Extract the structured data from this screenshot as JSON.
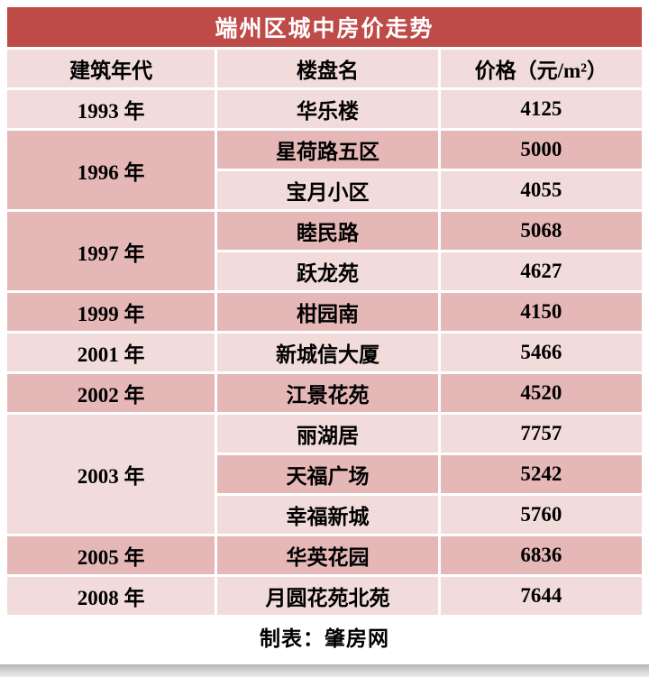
{
  "chart_data": {
    "type": "table",
    "title": "端州区城中房价走势",
    "columns": [
      "建筑年代",
      "楼盘名",
      "价格（元/m²）"
    ],
    "groups": [
      {
        "year": "1993 年",
        "entries": [
          {
            "name": "华乐楼",
            "price": 4125
          }
        ]
      },
      {
        "year": "1996 年",
        "entries": [
          {
            "name": "星荷路五区",
            "price": 5000
          },
          {
            "name": "宝月小区",
            "price": 4055
          }
        ]
      },
      {
        "year": "1997 年",
        "entries": [
          {
            "name": "睦民路",
            "price": 5068
          },
          {
            "name": "跃龙苑",
            "price": 4627
          }
        ]
      },
      {
        "year": "1999 年",
        "entries": [
          {
            "name": "柑园南",
            "price": 4150
          }
        ]
      },
      {
        "year": "2001 年",
        "entries": [
          {
            "name": "新城信大厦",
            "price": 5466
          }
        ]
      },
      {
        "year": "2002 年",
        "entries": [
          {
            "name": "江景花苑",
            "price": 4520
          }
        ]
      },
      {
        "year": "2003 年",
        "entries": [
          {
            "name": "丽湖居",
            "price": 7757
          },
          {
            "name": "天福广场",
            "price": 5242
          },
          {
            "name": "幸福新城",
            "price": 5760
          }
        ]
      },
      {
        "year": "2005 年",
        "entries": [
          {
            "name": "华英花园",
            "price": 6836
          }
        ]
      },
      {
        "year": "2008 年",
        "entries": [
          {
            "name": "月圆花苑北苑",
            "price": 7644
          }
        ]
      }
    ],
    "footer": "制表：肇房网",
    "colors": {
      "title_bg": "#be4b48",
      "row_light": "#f2dcdb",
      "row_dark": "#e5b8b7",
      "title_text": "#ffffff",
      "text": "#000000"
    }
  }
}
